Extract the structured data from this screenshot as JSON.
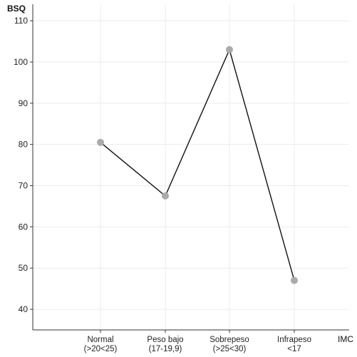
{
  "chart_data": {
    "type": "line",
    "ylabel": "BSQ",
    "xlabel": "IMC",
    "ylim": [
      35,
      114
    ],
    "yticks": [
      40,
      50,
      60,
      70,
      80,
      90,
      100,
      110
    ],
    "grid": true,
    "categories": [
      {
        "line1": "Normal",
        "line2": "(>20<25)"
      },
      {
        "line1": "Peso bajo",
        "line2": "(17-19,9)"
      },
      {
        "line1": "Sobrepeso",
        "line2": "(>25<30)"
      },
      {
        "line1": "Infrapeso",
        "line2": "<17"
      }
    ],
    "series": [
      {
        "values": [
          80.5,
          67.5,
          103,
          47
        ]
      }
    ],
    "colors": {
      "line": "#111111",
      "marker": "#aaaaaa",
      "grid": "#ebebeb",
      "axis": "#333333"
    }
  }
}
